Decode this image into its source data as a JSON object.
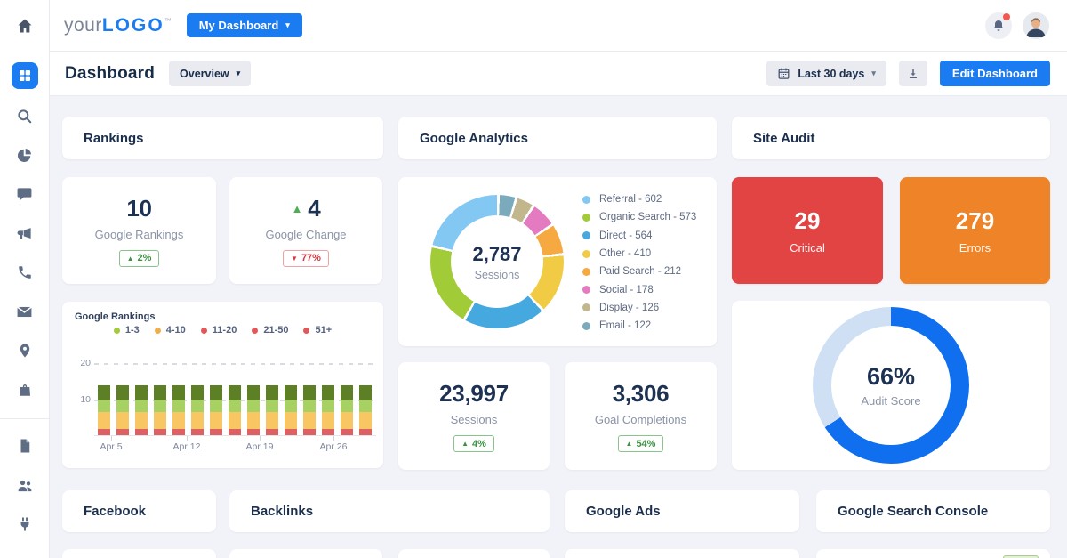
{
  "colors": {
    "accent": "#1b7cf1",
    "navy": "#1b2e4b",
    "muted": "#8a93a6",
    "page_bg": "#f2f3f8",
    "green": "#3c9442",
    "red": "#d9363e",
    "critical_bg": "#e24444",
    "errors_bg": "#ee8327"
  },
  "navbar": {
    "logo_your": "your",
    "logo_logo": "LOGO",
    "logo_tm": "™",
    "my_dashboard": "My Dashboard"
  },
  "sidebar": {
    "icons": [
      "home",
      "dashboard",
      "search",
      "pie-chart",
      "chat",
      "megaphone",
      "phone",
      "mail",
      "location-pin",
      "shopping-bag",
      "document",
      "users",
      "plug"
    ],
    "active": "dashboard"
  },
  "header": {
    "title": "Dashboard",
    "overview": "Overview",
    "date_range": "Last 30 days",
    "edit_button": "Edit Dashboard"
  },
  "section_titles": {
    "rankings": "Rankings",
    "google_analytics": "Google Analytics",
    "site_audit": "Site Audit",
    "facebook": "Facebook",
    "backlinks": "Backlinks",
    "google_ads": "Google Ads",
    "google_search_console": "Google Search Console"
  },
  "stats": {
    "google_rankings": {
      "value": "10",
      "label": "Google Rankings",
      "badge_value": "2%",
      "badge_direction": "up"
    },
    "google_change": {
      "value": "4",
      "label": "Google Change",
      "value_direction": "up",
      "badge_value": "77%",
      "badge_direction": "down"
    },
    "sessions": {
      "value": "23,997",
      "label": "Sessions",
      "badge_value": "4%",
      "badge_direction": "up"
    },
    "goal_completions": {
      "value": "3,306",
      "label": "Goal Completions",
      "badge_value": "54%",
      "badge_direction": "up"
    },
    "critical": {
      "value": "29",
      "label": "Critical"
    },
    "errors": {
      "value": "279",
      "label": "Errors"
    }
  },
  "chart_data": [
    {
      "type": "bar",
      "title": "Google Rankings",
      "stacked": true,
      "legend": [
        {
          "label": "1-3",
          "color": "#a2cb3a"
        },
        {
          "label": "4-10",
          "color": "#f0ad4e"
        },
        {
          "label": "11-20",
          "color": "#e25757"
        },
        {
          "label": "21-50",
          "color": "#e25757"
        },
        {
          "label": "51+",
          "color": "#e25757"
        }
      ],
      "x_tick_labels": [
        "Apr 5",
        "Apr 12",
        "Apr 19",
        "Apr 26"
      ],
      "y_ticks": [
        "10",
        "20"
      ],
      "ylim": [
        0,
        22
      ],
      "bar_count": 15,
      "bar_segments_bottom_to_top": [
        {
          "color": "#dd6062",
          "value": 2
        },
        {
          "color": "#f8c763",
          "value": 4.5
        },
        {
          "color": "#a8d164",
          "value": 3.5
        },
        {
          "color": "#5d8026",
          "value": 4
        }
      ]
    },
    {
      "type": "donut",
      "title": "Google Analytics",
      "center_value": "2,787",
      "center_label": "Sessions",
      "total": 2787,
      "legend_separator": " - ",
      "slices": [
        {
          "label": "Referral",
          "value": 602,
          "color": "#82c8f2"
        },
        {
          "label": "Organic Search",
          "value": 573,
          "color": "#a2cb38"
        },
        {
          "label": "Direct",
          "value": 564,
          "color": "#45a8de"
        },
        {
          "label": "Other",
          "value": 410,
          "color": "#f2cb44"
        },
        {
          "label": "Paid Search",
          "value": 212,
          "color": "#f6a940"
        },
        {
          "label": "Social",
          "value": 178,
          "color": "#e47bc0"
        },
        {
          "label": "Display",
          "value": 126,
          "color": "#c2b68c"
        },
        {
          "label": "Email",
          "value": 122,
          "color": "#7aaabb"
        }
      ]
    },
    {
      "type": "progress-donut",
      "title": "Site Audit",
      "percent": 66,
      "center_value": "66%",
      "center_label": "Audit Score",
      "color": "#0f6fef",
      "track_color": "#cfe0f4"
    }
  ]
}
